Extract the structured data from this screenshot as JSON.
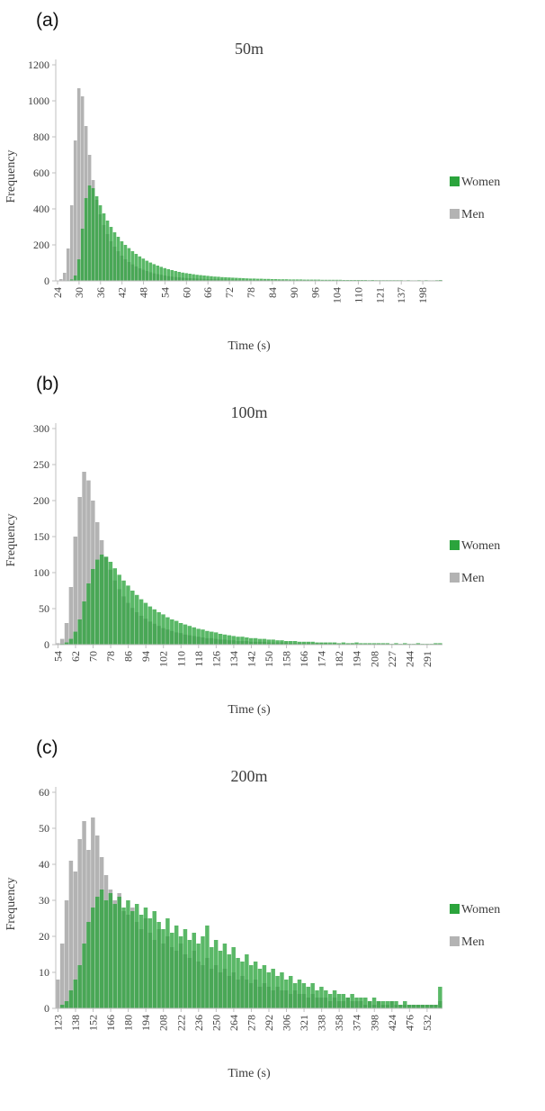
{
  "colors": {
    "women": "#2BA43C",
    "men": "#B3B3B3",
    "axis": "#BFBFBF",
    "text": "#3D3D3D"
  },
  "chart_data": [
    {
      "type": "bar",
      "subtype": "overlaid-histogram",
      "panel_label": "(a)",
      "title": "50m",
      "xlabel": "Time (s)",
      "ylabel": "Frequency",
      "ylim": [
        0,
        1200
      ],
      "y_ticks": [
        0,
        200,
        400,
        600,
        800,
        1000,
        1200
      ],
      "x_tick_labels": [
        "24",
        "30",
        "36",
        "42",
        "48",
        "54",
        "60",
        "66",
        "72",
        "78",
        "84",
        "90",
        "96",
        "104",
        "110",
        "121",
        "137",
        "198"
      ],
      "bins_per_label": 6,
      "grid": false,
      "legend_position": "right",
      "legend": [
        "Women",
        "Men"
      ],
      "series": [
        {
          "name": "Women",
          "values": [
            0,
            0,
            1,
            3,
            8,
            30,
            120,
            290,
            460,
            530,
            515,
            470,
            420,
            375,
            335,
            300,
            270,
            245,
            220,
            200,
            182,
            165,
            150,
            136,
            124,
            112,
            102,
            93,
            85,
            78,
            71,
            65,
            60,
            55,
            50,
            46,
            43,
            40,
            37,
            34,
            32,
            30,
            28,
            26,
            24,
            23,
            21,
            20,
            19,
            18,
            17,
            16,
            15,
            14,
            13,
            13,
            12,
            12,
            11,
            11,
            10,
            10,
            9,
            9,
            9,
            8,
            8,
            8,
            8,
            7,
            7,
            7,
            7,
            7,
            6,
            6,
            6,
            6,
            6,
            6,
            5,
            5,
            5,
            5,
            5,
            5,
            5,
            4,
            5,
            4,
            4,
            4,
            4,
            4,
            4,
            4,
            4,
            3,
            4,
            3,
            3,
            4,
            3,
            4,
            3,
            3,
            4,
            5
          ]
        },
        {
          "name": "Men",
          "values": [
            2,
            10,
            45,
            180,
            420,
            780,
            1070,
            1025,
            860,
            700,
            560,
            450,
            370,
            310,
            260,
            220,
            190,
            165,
            140,
            120,
            105,
            92,
            80,
            70,
            62,
            55,
            48,
            42,
            38,
            34,
            30,
            27,
            24,
            22,
            20,
            18,
            16,
            15,
            14,
            13,
            12,
            11,
            10,
            10,
            9,
            9,
            8,
            8,
            7,
            7,
            7,
            6,
            6,
            6,
            6,
            5,
            5,
            5,
            5,
            5,
            4,
            4,
            4,
            4,
            3,
            3,
            3,
            3,
            3,
            3,
            3,
            3,
            2,
            2,
            2,
            2,
            2,
            2,
            2,
            2,
            2,
            2,
            2,
            2,
            2,
            2,
            2,
            1,
            2,
            1,
            1,
            2,
            1,
            1,
            1,
            1,
            1,
            1,
            1,
            2,
            1,
            1,
            1,
            1,
            1,
            1,
            1,
            2
          ]
        }
      ]
    },
    {
      "type": "bar",
      "subtype": "overlaid-histogram",
      "panel_label": "(b)",
      "title": "100m",
      "xlabel": "Time (s)",
      "ylabel": "Frequency",
      "ylim": [
        0,
        300
      ],
      "y_ticks": [
        0,
        50,
        100,
        150,
        200,
        250,
        300
      ],
      "x_tick_labels": [
        "54",
        "62",
        "70",
        "78",
        "86",
        "94",
        "102",
        "110",
        "118",
        "126",
        "134",
        "142",
        "150",
        "158",
        "166",
        "174",
        "182",
        "194",
        "208",
        "227",
        "244",
        "291"
      ],
      "bins_per_label": 4,
      "grid": false,
      "legend_position": "right",
      "legend": [
        "Women",
        "Men"
      ],
      "series": [
        {
          "name": "Women",
          "values": [
            0,
            1,
            3,
            8,
            18,
            35,
            60,
            85,
            105,
            118,
            125,
            122,
            115,
            106,
            97,
            89,
            82,
            75,
            69,
            63,
            58,
            53,
            49,
            45,
            42,
            38,
            35,
            33,
            30,
            28,
            26,
            24,
            22,
            21,
            19,
            18,
            17,
            15,
            14,
            13,
            12,
            11,
            11,
            10,
            9,
            9,
            8,
            8,
            7,
            7,
            6,
            6,
            5,
            5,
            5,
            4,
            4,
            4,
            4,
            3,
            3,
            3,
            3,
            3,
            2,
            3,
            2,
            2,
            3,
            2,
            2,
            2,
            2,
            2,
            2,
            2,
            1,
            2,
            1,
            2,
            1,
            1,
            2,
            1,
            1,
            1,
            2,
            2
          ]
        },
        {
          "name": "Men",
          "values": [
            2,
            8,
            30,
            80,
            150,
            205,
            240,
            228,
            200,
            170,
            145,
            122,
            104,
            89,
            77,
            67,
            58,
            51,
            45,
            40,
            36,
            32,
            29,
            26,
            23,
            21,
            19,
            17,
            16,
            14,
            13,
            12,
            11,
            10,
            9,
            9,
            8,
            7,
            7,
            6,
            6,
            5,
            5,
            5,
            4,
            4,
            4,
            4,
            3,
            3,
            3,
            3,
            3,
            2,
            2,
            2,
            2,
            2,
            2,
            2,
            2,
            2,
            1,
            2,
            1,
            1,
            1,
            2,
            1,
            1,
            1,
            1,
            1,
            1,
            1,
            1,
            1,
            1,
            1,
            1,
            1,
            1,
            1,
            1,
            1,
            1,
            1,
            1
          ]
        }
      ]
    },
    {
      "type": "bar",
      "subtype": "overlaid-histogram",
      "panel_label": "(c)",
      "title": "200m",
      "xlabel": "Time (s)",
      "ylabel": "Frequency",
      "ylim": [
        0,
        60
      ],
      "y_ticks": [
        0,
        10,
        20,
        30,
        40,
        50,
        60
      ],
      "x_tick_labels": [
        "123",
        "138",
        "152",
        "166",
        "180",
        "194",
        "208",
        "222",
        "236",
        "250",
        "264",
        "278",
        "292",
        "306",
        "321",
        "338",
        "358",
        "374",
        "398",
        "424",
        "476",
        "532"
      ],
      "bins_per_label": 4,
      "grid": false,
      "legend_position": "right",
      "legend": [
        "Women",
        "Men"
      ],
      "series": [
        {
          "name": "Women",
          "values": [
            0,
            1,
            2,
            5,
            8,
            12,
            18,
            24,
            28,
            31,
            33,
            30,
            32,
            29,
            31,
            28,
            30,
            27,
            29,
            26,
            28,
            25,
            27,
            24,
            22,
            25,
            21,
            23,
            20,
            22,
            19,
            21,
            18,
            20,
            23,
            17,
            19,
            16,
            18,
            15,
            17,
            14,
            13,
            15,
            12,
            13,
            11,
            12,
            10,
            11,
            9,
            10,
            8,
            9,
            7,
            8,
            7,
            6,
            7,
            5,
            6,
            5,
            4,
            5,
            4,
            4,
            3,
            4,
            3,
            3,
            3,
            2,
            3,
            2,
            2,
            2,
            2,
            2,
            1,
            2,
            1,
            1,
            1,
            1,
            1,
            1,
            1,
            6
          ]
        },
        {
          "name": "Men",
          "values": [
            8,
            18,
            30,
            41,
            38,
            47,
            52,
            44,
            53,
            48,
            42,
            37,
            33,
            30,
            32,
            27,
            26,
            28,
            24,
            22,
            25,
            21,
            19,
            22,
            18,
            20,
            17,
            16,
            18,
            15,
            14,
            16,
            13,
            12,
            14,
            11,
            12,
            10,
            11,
            9,
            10,
            8,
            9,
            8,
            7,
            8,
            6,
            7,
            6,
            5,
            6,
            5,
            5,
            4,
            5,
            4,
            4,
            3,
            4,
            3,
            3,
            3,
            2,
            3,
            2,
            2,
            3,
            2,
            2,
            2,
            1,
            2,
            1,
            2,
            1,
            1,
            2,
            1,
            1,
            1,
            1,
            1,
            1,
            1,
            1,
            1,
            1,
            2
          ]
        }
      ]
    }
  ]
}
